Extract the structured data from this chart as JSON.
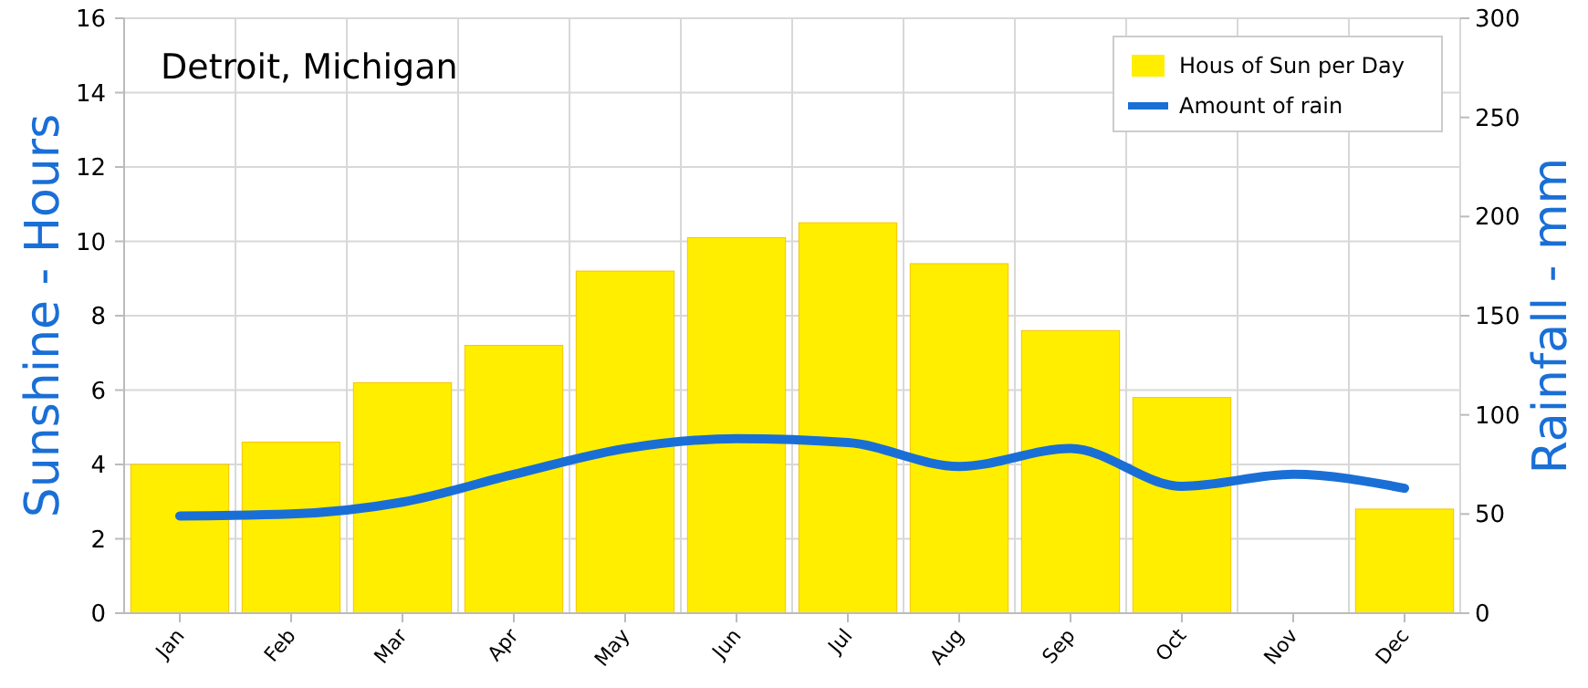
{
  "chart_data": {
    "type": "bar",
    "title": "Detroit, Michigan",
    "ylabel": "Sunshine - Hours",
    "y2label": "Rainfall - mm",
    "categories": [
      "Jan",
      "Feb",
      "Mar",
      "Apr",
      "May",
      "Jun",
      "Jul",
      "Aug",
      "Sep",
      "Oct",
      "Nov",
      "Dec"
    ],
    "series": [
      {
        "name": "Hous of Sun per Day",
        "color": "#ffee00",
        "values": [
          4.0,
          4.6,
          6.2,
          7.2,
          9.2,
          10.1,
          10.5,
          9.4,
          7.6,
          5.8,
          null,
          2.8
        ]
      },
      {
        "name": "Amount of rain",
        "type": "line",
        "axis": "y2",
        "color": "#1a6fd6",
        "values": [
          49,
          50,
          56,
          70,
          83,
          88,
          86,
          74,
          83,
          64,
          70,
          63
        ]
      }
    ],
    "ylim": [
      0,
      16
    ],
    "yticks": [
      0,
      2,
      4,
      6,
      8,
      10,
      12,
      14,
      16
    ],
    "y2lim": [
      0,
      300
    ],
    "y2ticks": [
      0,
      50,
      100,
      150,
      200,
      250,
      300
    ],
    "grid": true,
    "legend": "top right"
  }
}
